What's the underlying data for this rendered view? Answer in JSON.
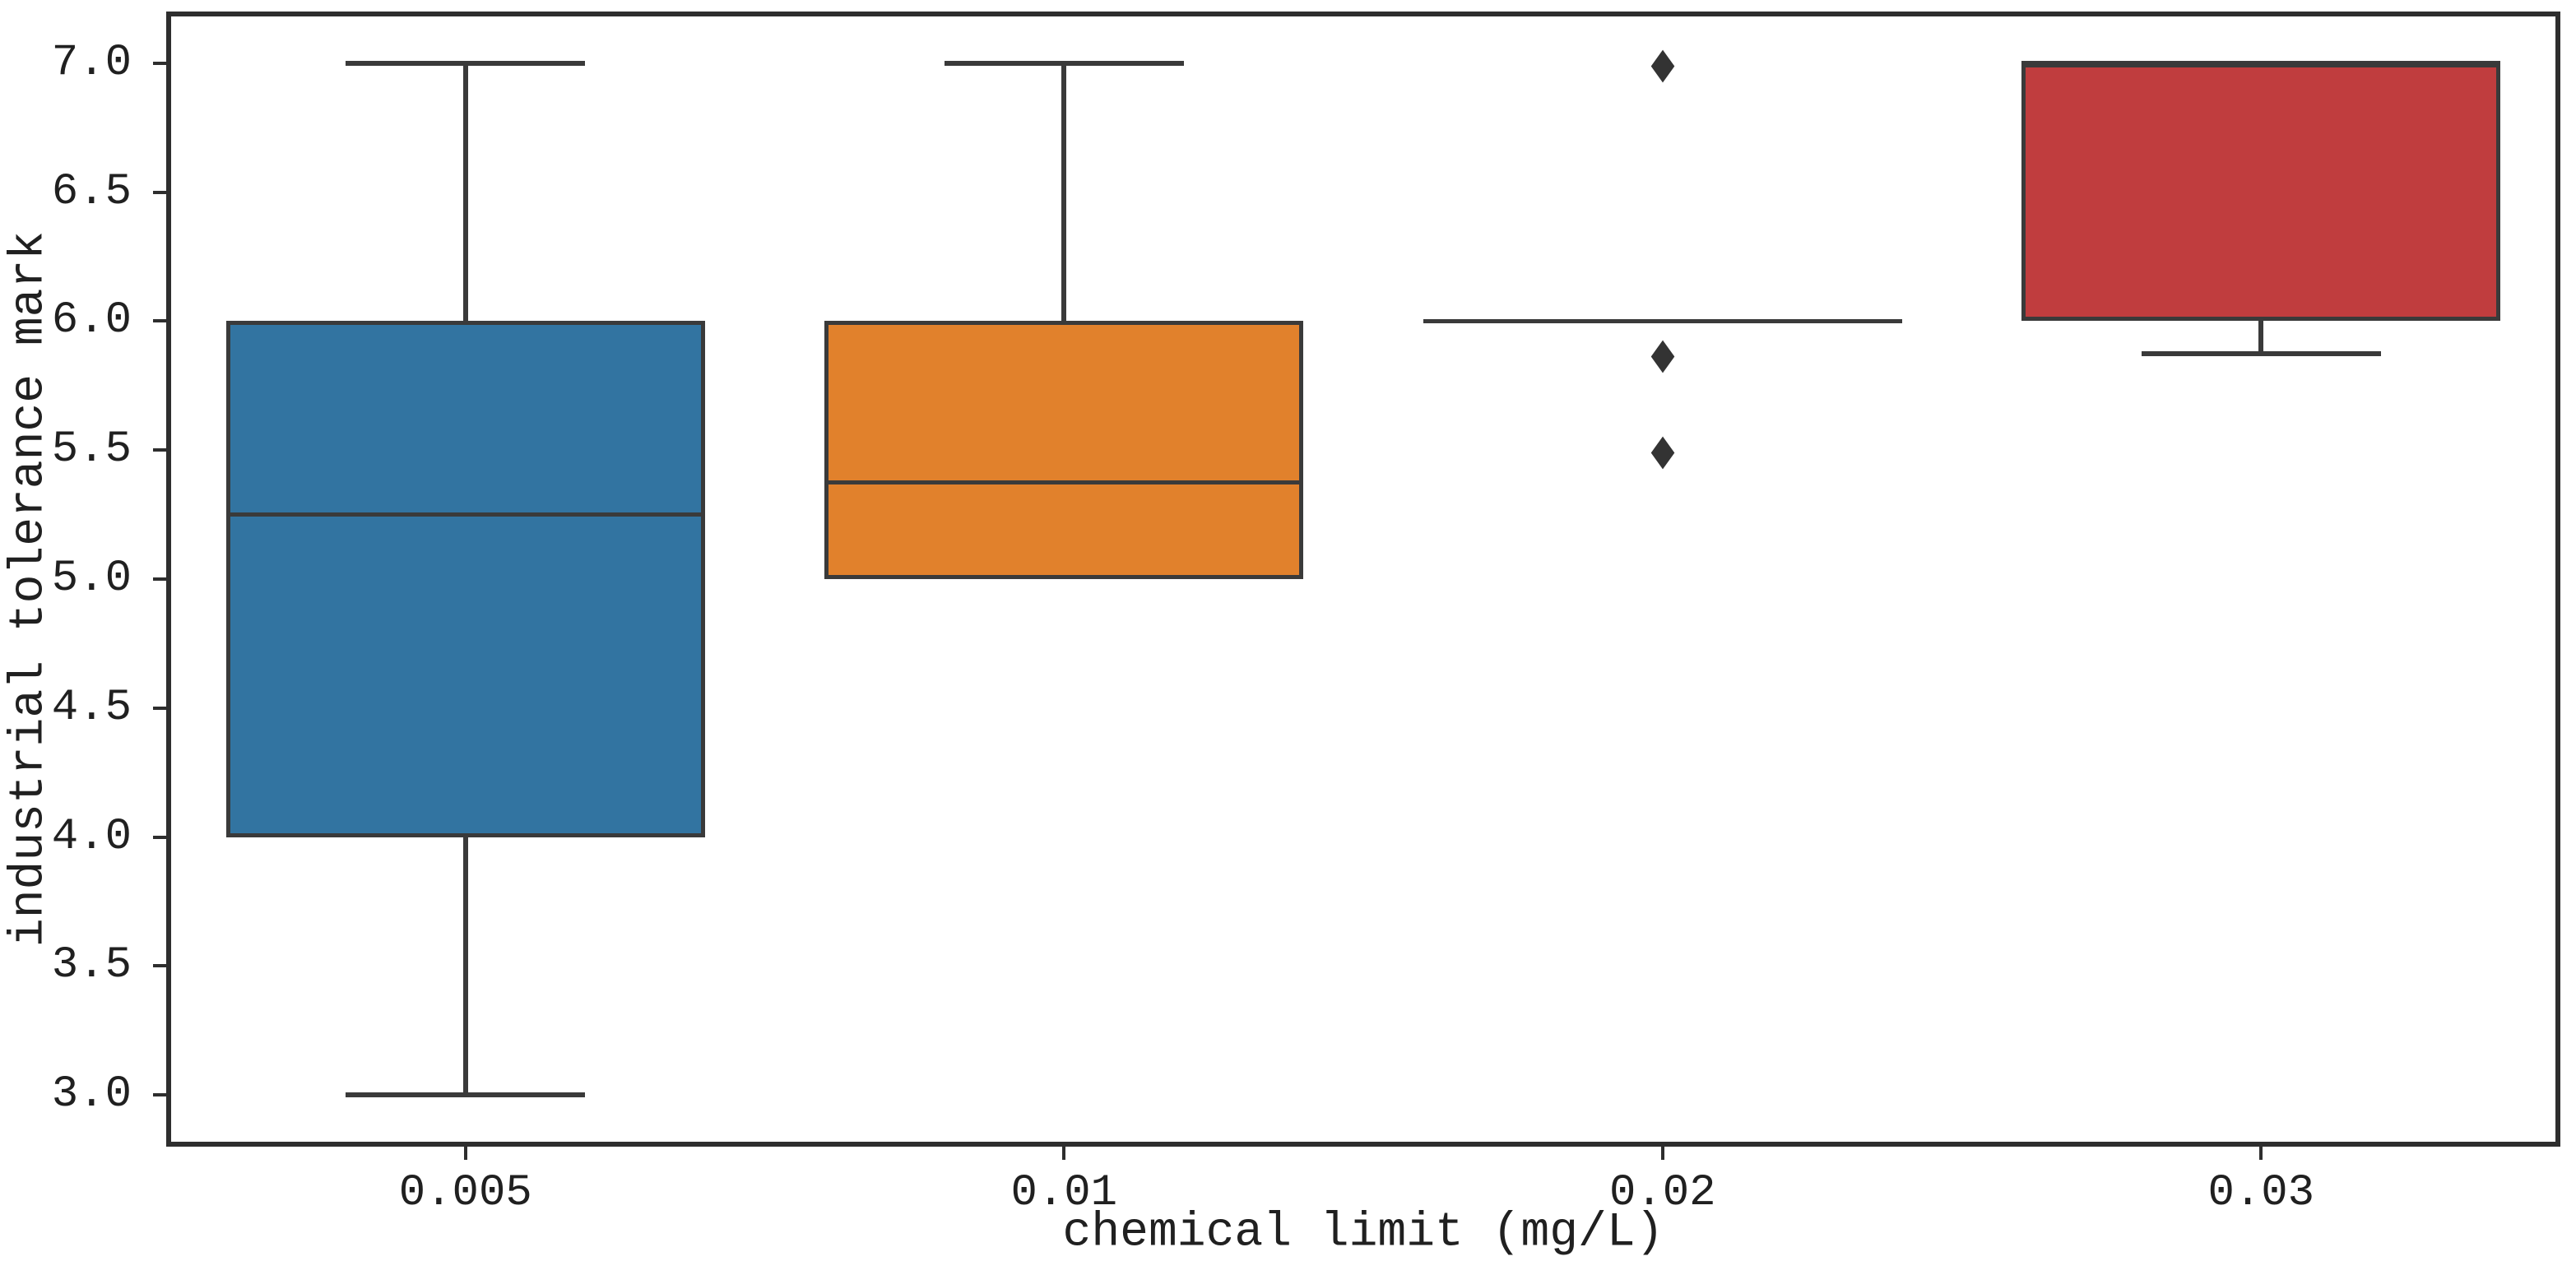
{
  "chart_data": {
    "type": "box",
    "title": "",
    "xlabel": "chemical limit (mg/L)",
    "ylabel": "industrial tolerance mark",
    "categories": [
      "0.005",
      "0.01",
      "0.02",
      "0.03"
    ],
    "ylim": [
      2.8,
      7.2
    ],
    "yticks": [
      3.0,
      3.5,
      4.0,
      4.5,
      5.0,
      5.5,
      6.0,
      6.5,
      7.0
    ],
    "ytick_labels": [
      "3.0",
      "3.5",
      "4.0",
      "4.5",
      "5.0",
      "5.5",
      "6.0",
      "6.5",
      "7.0"
    ],
    "grid": false,
    "legend": null,
    "outlier_marker": "diamond",
    "outlier_glyph": "◆",
    "boxes": [
      {
        "category": "0.005",
        "color": "#3274a1",
        "q1": 4.0,
        "median": 5.25,
        "q3": 6.0,
        "whisker_low": 3.0,
        "whisker_high": 7.0,
        "outliers": []
      },
      {
        "category": "0.01",
        "color": "#e1812c",
        "q1": 5.0,
        "median": 5.375,
        "q3": 6.0,
        "whisker_low": 5.0,
        "whisker_high": 7.0,
        "outliers": []
      },
      {
        "category": "0.02",
        "color": "#3a923a",
        "q1": 6.0,
        "median": 6.0,
        "q3": 6.0,
        "whisker_low": 6.0,
        "whisker_high": 6.0,
        "outliers": [
          7.0,
          5.875,
          5.5
        ]
      },
      {
        "category": "0.03",
        "color": "#c03d3e",
        "q1": 6.0,
        "median": 7.0,
        "q3": 7.0,
        "whisker_low": 5.875,
        "whisker_high": 7.0,
        "outliers": []
      }
    ],
    "colors": {
      "line": "#3a3a3a",
      "frame": "#2e2e2e",
      "marker": "#333333",
      "background": "#ffffff",
      "text": "#202020"
    }
  }
}
